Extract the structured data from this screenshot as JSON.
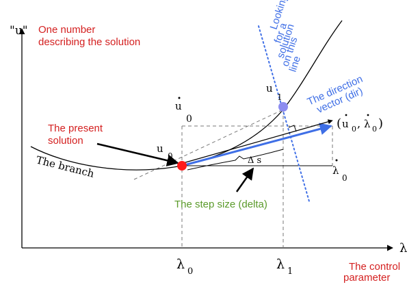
{
  "axes": {
    "y_label": "\"u\"",
    "y_caption_line1": "One number",
    "y_caption_line2": "describing the solution",
    "x_label": "λ",
    "x_caption_line1": "The control",
    "x_caption_line2": "parameter"
  },
  "ticks": {
    "lambda0": "λ",
    "lambda0_sub": "0",
    "lambda1": "λ",
    "lambda1_sub": "1"
  },
  "labels": {
    "branch": "The branch",
    "present_line1": "The present",
    "present_line2": "solution",
    "u0_point": "u",
    "u0_point_sub": "0",
    "u1_point": "u",
    "u1_point_sub": "1",
    "udot0": "u",
    "udot0_sub": "0",
    "lambdadot0": "λ",
    "lambdadot0_sub": "0",
    "tuple_open": "(",
    "tuple_u": "u",
    "tuple_u_sub": "0",
    "tuple_comma": ",",
    "tuple_lambda": "λ",
    "tuple_lambda_sub": "0",
    "tuple_close": ")",
    "delta_s": "Δ s",
    "step_size": "The step size (delta)",
    "direction_line1": "The direction",
    "direction_line2": "vector (dir)",
    "looking_line1": "Looking",
    "looking_line2": "for a",
    "looking_line3": "solution",
    "looking_line4": "on this",
    "looking_line5": "line"
  },
  "colors": {
    "red": "#d42020",
    "blue": "#3f6fe6",
    "green": "#5a9a2a",
    "point_red": "#ff1a1a",
    "point_blue": "#8c8cf0",
    "ink": "#000000"
  }
}
